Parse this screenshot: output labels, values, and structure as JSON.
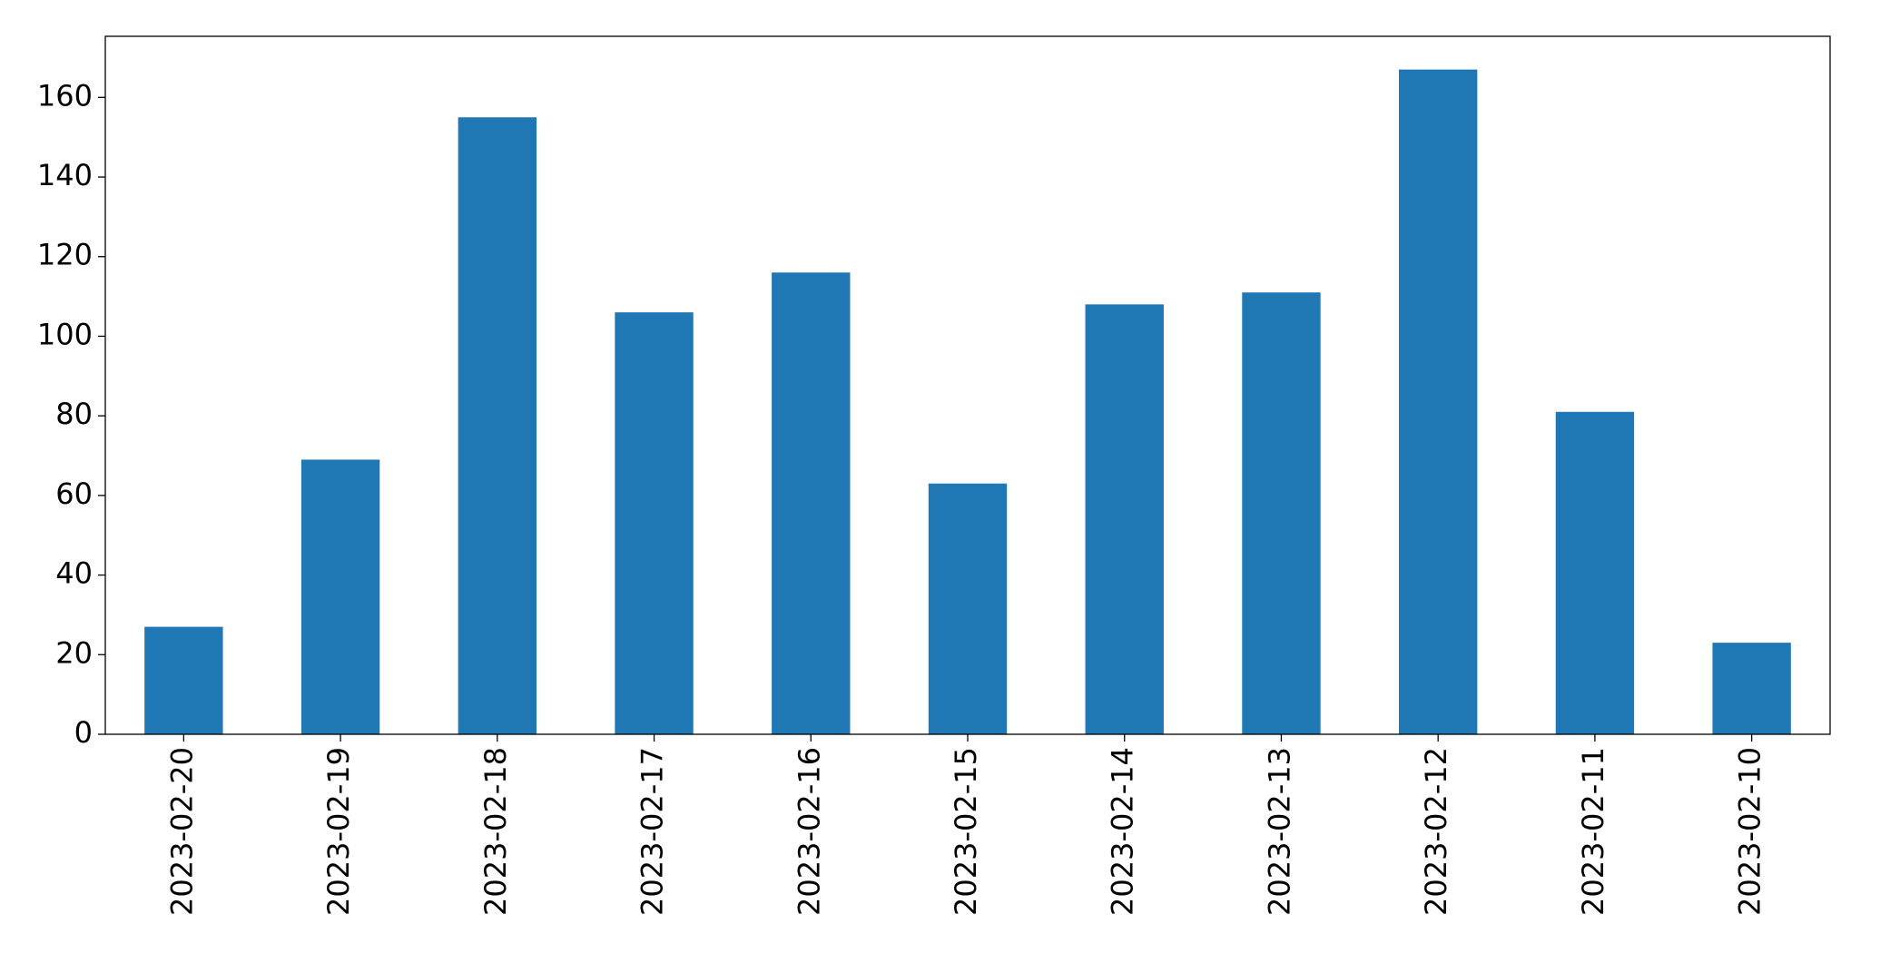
{
  "chart_data": {
    "type": "bar",
    "categories": [
      "2023-02-20",
      "2023-02-19",
      "2023-02-18",
      "2023-02-17",
      "2023-02-16",
      "2023-02-15",
      "2023-02-14",
      "2023-02-13",
      "2023-02-12",
      "2023-02-11",
      "2023-02-10"
    ],
    "values": [
      27,
      69,
      155,
      106,
      116,
      63,
      108,
      111,
      167,
      81,
      23
    ],
    "color": "#1f77b4",
    "ylim": [
      0,
      175.35
    ],
    "yticks": [
      0,
      20,
      40,
      60,
      80,
      100,
      120,
      140,
      160
    ],
    "grid": false
  }
}
